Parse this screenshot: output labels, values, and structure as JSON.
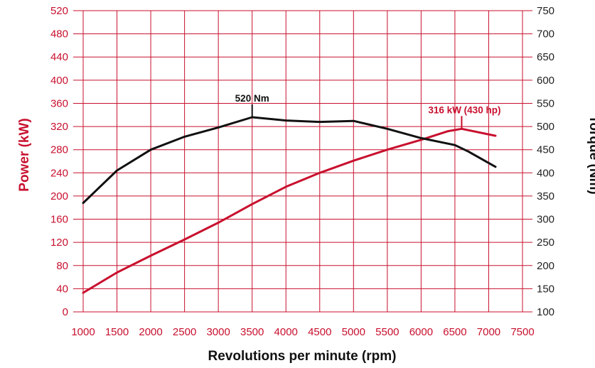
{
  "chart_data": {
    "type": "line",
    "xlabel": "Revolutions per minute (rpm)",
    "ylabel_left": "Power (kW)",
    "ylabel_right": "Torque (Nm)",
    "x_ticks": [
      1000,
      1500,
      2000,
      2500,
      3000,
      3500,
      4000,
      4500,
      5000,
      5500,
      6000,
      6500,
      7000,
      7500
    ],
    "y_left_ticks": [
      0,
      40,
      80,
      120,
      160,
      200,
      240,
      280,
      320,
      360,
      400,
      440,
      480,
      520
    ],
    "y_right_ticks": [
      100,
      150,
      200,
      250,
      300,
      350,
      400,
      450,
      500,
      550,
      600,
      650,
      700,
      750
    ],
    "xlim": [
      1000,
      7500
    ],
    "ylim_left": [
      0,
      520
    ],
    "ylim_right": [
      100,
      750
    ],
    "grid": true,
    "colors": {
      "power": "#c8102e",
      "torque": "#111111",
      "grid": "#c8102e"
    },
    "series": [
      {
        "axis": "left",
        "x": [
          1000,
          1500,
          2000,
          2500,
          3000,
          3500,
          4000,
          4500,
          5000,
          5500,
          6000,
          6400,
          6600,
          7100
        ],
        "values": [
          33,
          68,
          97,
          125,
          154,
          186,
          216,
          240,
          261,
          280,
          297,
          312,
          316,
          304
        ]
      },
      {
        "axis": "right",
        "x": [
          1000,
          1500,
          2000,
          2500,
          3000,
          3500,
          4000,
          4500,
          5000,
          5500,
          6000,
          6500,
          6700,
          7100
        ],
        "values": [
          335,
          405,
          450,
          478,
          498,
          520,
          513,
          510,
          512,
          495,
          475,
          460,
          446,
          413
        ]
      }
    ],
    "annotations": [
      {
        "text": "520 Nm",
        "x": 3500,
        "y": 520,
        "axis": "right",
        "color": "#111111"
      },
      {
        "text": "316 kW (430 hp)",
        "x": 6600,
        "y": 316,
        "axis": "left",
        "color": "#c8102e"
      }
    ]
  }
}
